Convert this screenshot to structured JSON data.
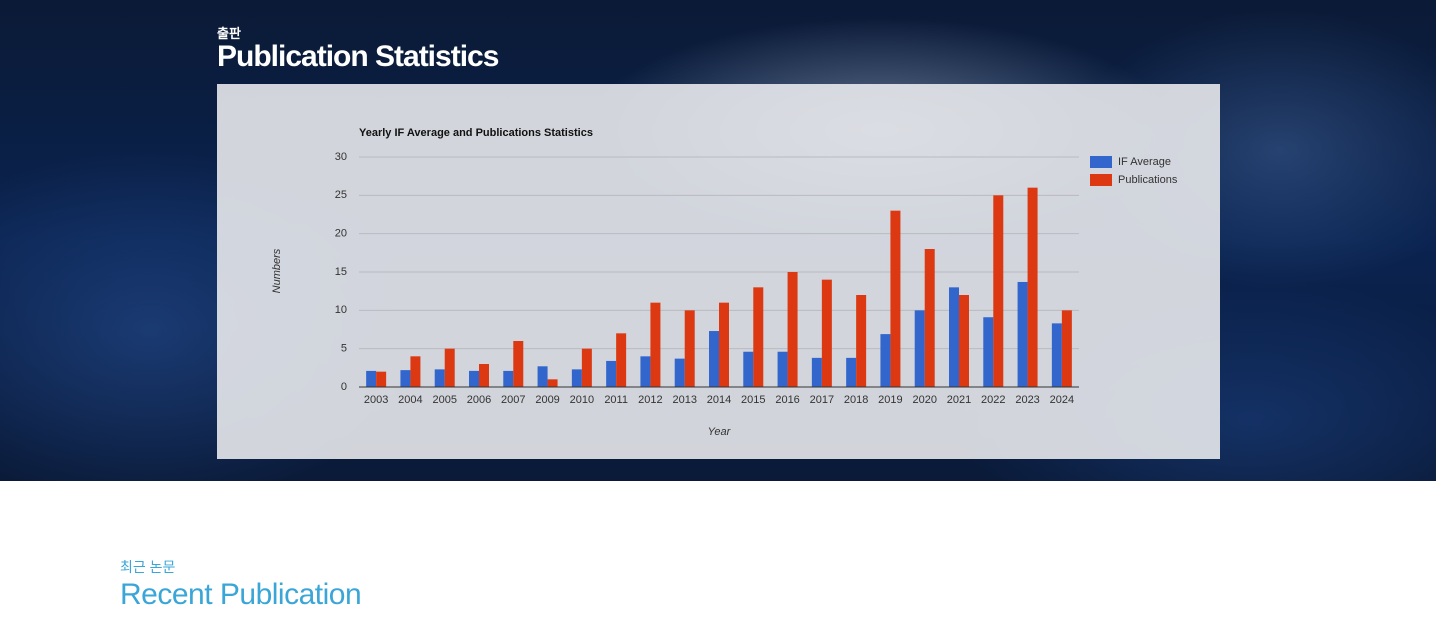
{
  "hero": {
    "kicker": "출판",
    "title": "Publication Statistics"
  },
  "chart_data": {
    "type": "bar",
    "title": "Yearly IF Average and Publications Statistics",
    "x_label": "Year",
    "y_label": "Numbers",
    "categories": [
      "2003",
      "2004",
      "2005",
      "2006",
      "2007",
      "2009",
      "2010",
      "2011",
      "2012",
      "2013",
      "2014",
      "2015",
      "2016",
      "2017",
      "2018",
      "2019",
      "2020",
      "2021",
      "2022",
      "2023",
      "2024"
    ],
    "series": [
      {
        "name": "IF Average",
        "color": "#3366cc",
        "values": [
          2.1,
          2.2,
          2.3,
          2.1,
          2.1,
          2.7,
          2.3,
          3.4,
          4.0,
          3.7,
          7.3,
          4.6,
          4.6,
          3.8,
          3.8,
          6.9,
          10.0,
          13.0,
          9.1,
          13.7,
          8.3
        ]
      },
      {
        "name": "Publications",
        "color": "#dc3912",
        "values": [
          2,
          4,
          5,
          3,
          6,
          1,
          5,
          7,
          11,
          10,
          11,
          13,
          15,
          14,
          12,
          23,
          18,
          12,
          25,
          26,
          10
        ]
      }
    ],
    "ylim": [
      0,
      30
    ],
    "yticks": [
      0,
      5,
      10,
      15,
      20,
      25,
      30
    ],
    "grid": true,
    "legend": "right"
  },
  "section": {
    "kicker": "최근 논문",
    "title": "Recent Publication"
  }
}
